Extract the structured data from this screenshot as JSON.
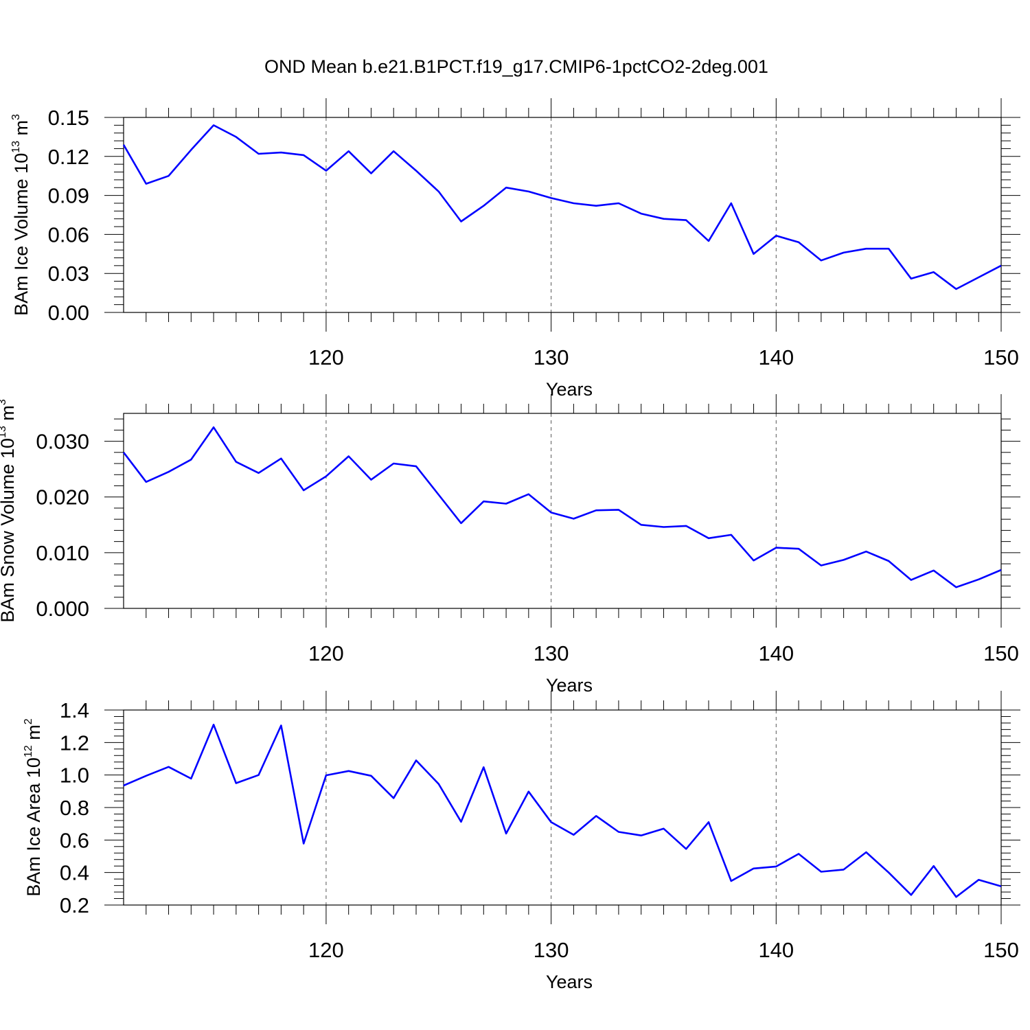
{
  "title": "OND Mean b.e21.B1PCT.f19_g17.CMIP6-1pctCO2-2deg.001",
  "colors": {
    "line": "#0000ff",
    "axis": "#000000",
    "grid": "#555555"
  },
  "chart_data": [
    {
      "type": "line",
      "xlabel": "Years",
      "ylabel": {
        "main": "BAm Ice Volume 10",
        "exp": "13",
        "unit": " m",
        "unit_exp": "3"
      },
      "xlim": [
        111,
        150
      ],
      "ylim": [
        0.0,
        0.15
      ],
      "xticks": [
        120,
        130,
        140,
        150
      ],
      "xtick_labels": [
        "120",
        "130",
        "140",
        "150"
      ],
      "yticks": [
        0.0,
        0.03,
        0.06,
        0.09,
        0.12,
        0.15
      ],
      "ytick_labels": [
        "0.00",
        "0.03",
        "0.06",
        "0.09",
        "0.12",
        "0.15"
      ],
      "grid": "vertical dashed at major x ticks",
      "x": [
        111,
        112,
        113,
        114,
        115,
        116,
        117,
        118,
        119,
        120,
        121,
        122,
        123,
        124,
        125,
        126,
        127,
        128,
        129,
        130,
        131,
        132,
        133,
        134,
        135,
        136,
        137,
        138,
        139,
        140,
        141,
        142,
        143,
        144,
        145,
        146,
        147,
        148,
        149,
        150
      ],
      "y": [
        0.129,
        0.099,
        0.105,
        0.125,
        0.144,
        0.135,
        0.122,
        0.123,
        0.121,
        0.109,
        0.124,
        0.107,
        0.124,
        0.109,
        0.093,
        0.07,
        0.082,
        0.096,
        0.093,
        0.088,
        0.084,
        0.082,
        0.084,
        0.076,
        0.072,
        0.071,
        0.055,
        0.084,
        0.045,
        0.059,
        0.054,
        0.04,
        0.046,
        0.049,
        0.049,
        0.026,
        0.031,
        0.018,
        0.027,
        0.036
      ]
    },
    {
      "type": "line",
      "xlabel": "Years",
      "ylabel": {
        "main": "BAm Snow Volume 10",
        "exp": "13",
        "unit": " m",
        "unit_exp": "3"
      },
      "xlim": [
        111,
        150
      ],
      "ylim": [
        0.0,
        0.035
      ],
      "xticks": [
        120,
        130,
        140,
        150
      ],
      "xtick_labels": [
        "120",
        "130",
        "140",
        "150"
      ],
      "yticks": [
        0.0,
        0.01,
        0.02,
        0.03
      ],
      "ytick_labels": [
        "0.000",
        "0.010",
        "0.020",
        "0.030"
      ],
      "grid": "vertical dashed at major x ticks",
      "x": [
        111,
        112,
        113,
        114,
        115,
        116,
        117,
        118,
        119,
        120,
        121,
        122,
        123,
        124,
        125,
        126,
        127,
        128,
        129,
        130,
        131,
        132,
        133,
        134,
        135,
        136,
        137,
        138,
        139,
        140,
        141,
        142,
        143,
        144,
        145,
        146,
        147,
        148,
        149,
        150
      ],
      "y": [
        0.028,
        0.0227,
        0.0245,
        0.0267,
        0.0325,
        0.0263,
        0.0243,
        0.0269,
        0.0212,
        0.0237,
        0.0273,
        0.0231,
        0.026,
        0.0255,
        0.0204,
        0.0153,
        0.0192,
        0.0188,
        0.0205,
        0.0172,
        0.0161,
        0.0176,
        0.0177,
        0.015,
        0.0146,
        0.0148,
        0.0126,
        0.0132,
        0.0086,
        0.0109,
        0.0107,
        0.0077,
        0.0087,
        0.0102,
        0.0085,
        0.0051,
        0.0068,
        0.0038,
        0.0052,
        0.0069
      ]
    },
    {
      "type": "line",
      "xlabel": "Years",
      "ylabel": {
        "main": "BAm Ice Area 10",
        "exp": "12",
        "unit": " m",
        "unit_exp": "2"
      },
      "xlim": [
        111,
        150
      ],
      "ylim": [
        0.2,
        1.4
      ],
      "xticks": [
        120,
        130,
        140,
        150
      ],
      "xtick_labels": [
        "120",
        "130",
        "140",
        "150"
      ],
      "yticks": [
        0.2,
        0.4,
        0.6,
        0.8,
        1.0,
        1.2,
        1.4
      ],
      "ytick_labels": [
        "0.2",
        "0.4",
        "0.6",
        "0.8",
        "1.0",
        "1.2",
        "1.4"
      ],
      "grid": "vertical dashed at major x ticks",
      "x": [
        111,
        112,
        113,
        114,
        115,
        116,
        117,
        118,
        119,
        120,
        121,
        122,
        123,
        124,
        125,
        126,
        127,
        128,
        129,
        130,
        131,
        132,
        133,
        134,
        135,
        136,
        137,
        138,
        139,
        140,
        141,
        142,
        143,
        144,
        145,
        146,
        147,
        148,
        149,
        150
      ],
      "y": [
        0.935,
        0.995,
        1.05,
        0.978,
        1.31,
        0.95,
        1.0,
        1.305,
        0.578,
        0.998,
        1.025,
        0.995,
        0.858,
        1.09,
        0.945,
        0.712,
        1.048,
        0.64,
        0.898,
        0.71,
        0.632,
        0.748,
        0.65,
        0.628,
        0.67,
        0.545,
        0.71,
        0.348,
        0.425,
        0.437,
        0.515,
        0.405,
        0.418,
        0.525,
        0.4,
        0.262,
        0.44,
        0.25,
        0.355,
        0.315
      ]
    }
  ]
}
